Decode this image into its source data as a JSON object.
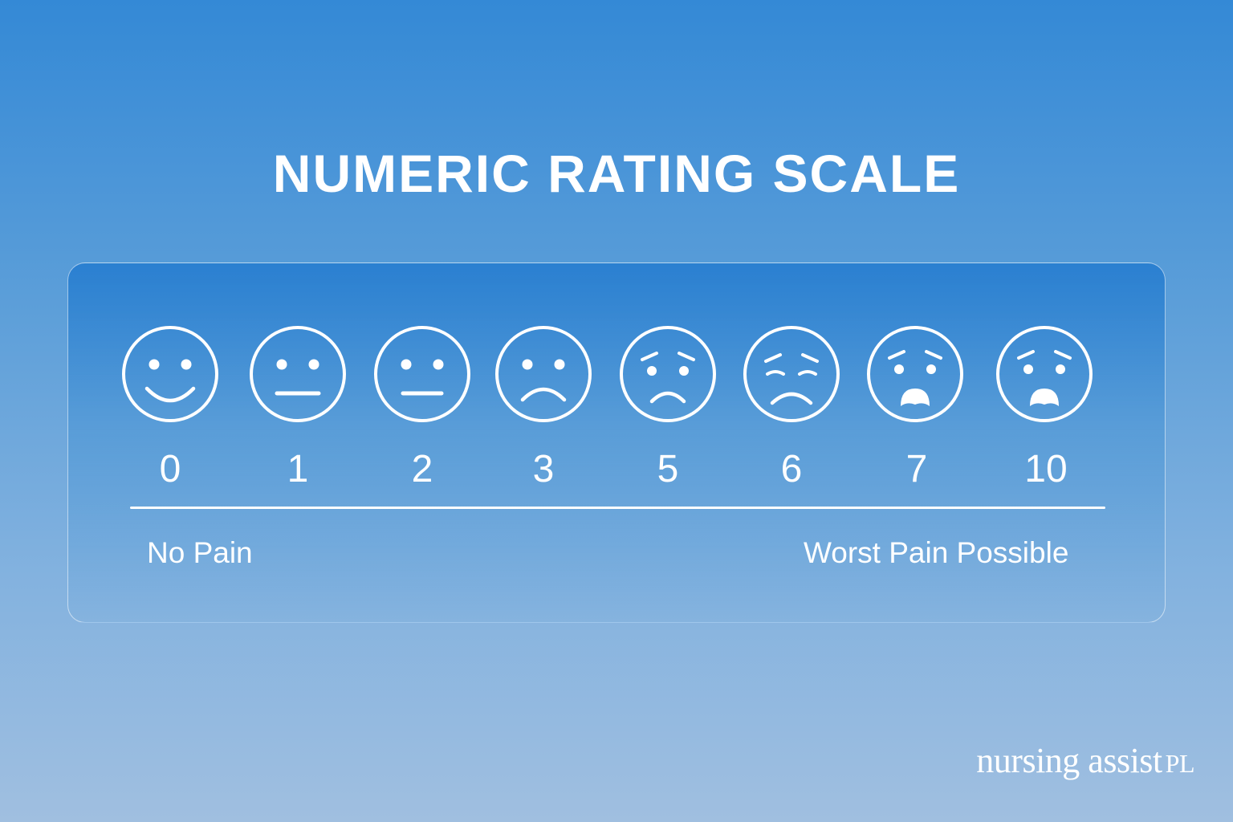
{
  "title": "NUMERIC RATING SCALE",
  "scale": {
    "faces": [
      {
        "value": "0",
        "icon": "smiling-face-icon"
      },
      {
        "value": "1",
        "icon": "neutral-face-icon"
      },
      {
        "value": "2",
        "icon": "neutral-face-icon"
      },
      {
        "value": "3",
        "icon": "frowning-face-icon"
      },
      {
        "value": "5",
        "icon": "worried-face-icon"
      },
      {
        "value": "6",
        "icon": "pained-face-icon"
      },
      {
        "value": "7",
        "icon": "anguished-face-icon"
      },
      {
        "value": "10",
        "icon": "anguished-face-icon"
      }
    ],
    "left_label": "No Pain",
    "right_label": "Worst Pain Possible"
  },
  "brand": {
    "name": "nursing assist",
    "suffix": "PL"
  }
}
